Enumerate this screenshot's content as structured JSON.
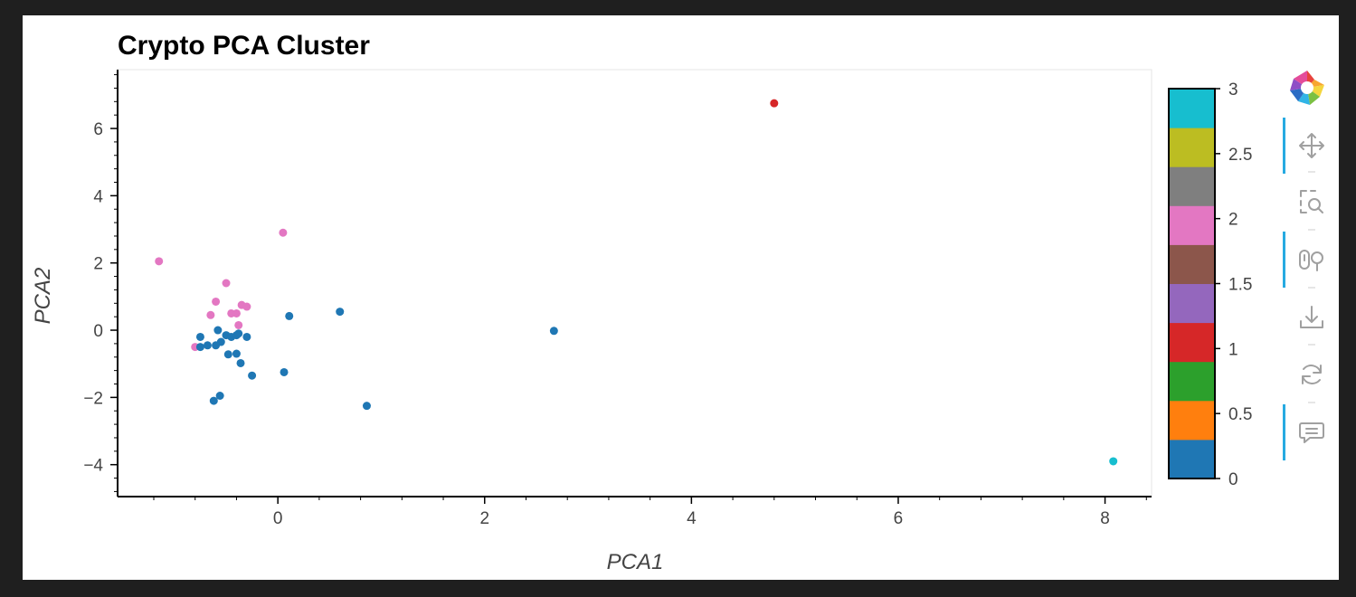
{
  "chart_data": {
    "type": "scatter",
    "title": "Crypto PCA Cluster",
    "xlabel": "PCA1",
    "ylabel": "PCA2",
    "xlim": [
      -1.55,
      8.45
    ],
    "ylim": [
      -4.95,
      7.75
    ],
    "xticks": [
      0,
      2,
      4,
      6,
      8
    ],
    "xtick_labels": [
      "0",
      "2",
      "4",
      "6",
      "8"
    ],
    "yticks": [
      -4,
      -2,
      0,
      2,
      4,
      6
    ],
    "ytick_labels": [
      "−4",
      "−2",
      "0",
      "2",
      "4",
      "6"
    ],
    "color_by": "class",
    "grid": false,
    "colorbar": {
      "range": [
        0,
        3
      ],
      "ticks": [
        0,
        0.5,
        1,
        1.5,
        2,
        2.5,
        3
      ],
      "tick_labels": [
        "0",
        "0.5",
        "1",
        "1.5",
        "2",
        "2.5",
        "3"
      ],
      "palette": [
        "#1f77b4",
        "#ff7f0e",
        "#2ca02c",
        "#d62728",
        "#9467bd",
        "#8c564b",
        "#e377c2",
        "#7f7f7f",
        "#bcbd22",
        "#17becf"
      ]
    },
    "class_colors": {
      "0": "#1f77b4",
      "1": "#d62728",
      "2": "#e377c2",
      "3": "#17becf"
    },
    "points": [
      {
        "x": 4.8,
        "y": 6.75,
        "class": 1
      },
      {
        "x": 8.08,
        "y": -3.9,
        "class": 3
      },
      {
        "x": 0.05,
        "y": 2.9,
        "class": 2
      },
      {
        "x": -1.15,
        "y": 2.05,
        "class": 2
      },
      {
        "x": -0.5,
        "y": 1.4,
        "class": 2
      },
      {
        "x": -0.6,
        "y": 0.85,
        "class": 2
      },
      {
        "x": -0.35,
        "y": 0.75,
        "class": 2
      },
      {
        "x": -0.3,
        "y": 0.7,
        "class": 2
      },
      {
        "x": -0.45,
        "y": 0.5,
        "class": 2
      },
      {
        "x": -0.4,
        "y": 0.5,
        "class": 2
      },
      {
        "x": -0.65,
        "y": 0.45,
        "class": 2
      },
      {
        "x": -0.38,
        "y": 0.15,
        "class": 2
      },
      {
        "x": -0.8,
        "y": -0.5,
        "class": 2
      },
      {
        "x": 0.6,
        "y": 0.55,
        "class": 0
      },
      {
        "x": 0.11,
        "y": 0.42,
        "class": 0
      },
      {
        "x": 2.67,
        "y": -0.02,
        "class": 0
      },
      {
        "x": -0.58,
        "y": 0.0,
        "class": 0
      },
      {
        "x": -0.75,
        "y": -0.2,
        "class": 0
      },
      {
        "x": -0.5,
        "y": -0.15,
        "class": 0
      },
      {
        "x": -0.45,
        "y": -0.2,
        "class": 0
      },
      {
        "x": -0.4,
        "y": -0.15,
        "class": 0
      },
      {
        "x": -0.38,
        "y": -0.1,
        "class": 0
      },
      {
        "x": -0.3,
        "y": -0.2,
        "class": 0
      },
      {
        "x": -0.55,
        "y": -0.35,
        "class": 0
      },
      {
        "x": -0.6,
        "y": -0.45,
        "class": 0
      },
      {
        "x": -0.68,
        "y": -0.45,
        "class": 0
      },
      {
        "x": -0.75,
        "y": -0.5,
        "class": 0
      },
      {
        "x": -0.48,
        "y": -0.72,
        "class": 0
      },
      {
        "x": -0.4,
        "y": -0.7,
        "class": 0
      },
      {
        "x": -0.36,
        "y": -0.98,
        "class": 0
      },
      {
        "x": -0.25,
        "y": -1.35,
        "class": 0
      },
      {
        "x": 0.06,
        "y": -1.25,
        "class": 0
      },
      {
        "x": -0.56,
        "y": -1.95,
        "class": 0
      },
      {
        "x": -0.62,
        "y": -2.1,
        "class": 0
      },
      {
        "x": 0.86,
        "y": -2.25,
        "class": 0
      }
    ]
  },
  "toolbar": {
    "tools": [
      {
        "name": "pan-tool",
        "icon": "move-icon",
        "active": true
      },
      {
        "name": "box-zoom-tool",
        "icon": "box-zoom-icon",
        "active": false
      },
      {
        "name": "wheel-zoom-tool",
        "icon": "wheel-zoom-icon",
        "active": true
      },
      {
        "name": "save-tool",
        "icon": "save-icon",
        "active": false
      },
      {
        "name": "reset-tool",
        "icon": "reset-icon",
        "active": false
      },
      {
        "name": "hover-tool",
        "icon": "hover-icon",
        "active": true
      }
    ],
    "active_color": "#26aae1",
    "icon_color": "#a0a0a0"
  }
}
